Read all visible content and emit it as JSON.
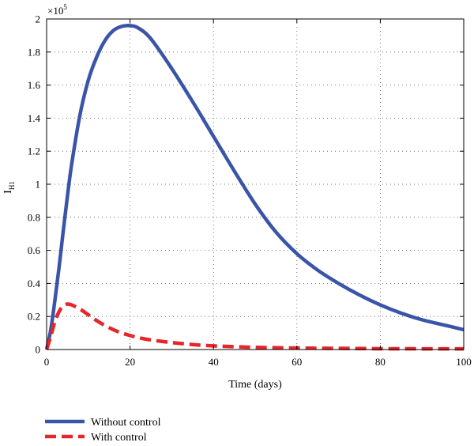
{
  "chart_data": {
    "type": "line",
    "xlabel": "Time (days)",
    "ylabel": "I",
    "ylabel_subscript": "H1",
    "y_exponent_base": "×10",
    "y_exponent_power": "5",
    "xlim": [
      0,
      100
    ],
    "ylim": [
      0,
      2
    ],
    "x_ticks": [
      "0",
      "20",
      "40",
      "60",
      "80",
      "100"
    ],
    "y_ticks": [
      "0",
      "0.2",
      "0.4",
      "0.6",
      "0.8",
      "1",
      "1.2",
      "1.4",
      "1.6",
      "1.8",
      "2"
    ],
    "grid": true,
    "legend_position": "bottom-left, below plot",
    "x": [
      0,
      1,
      2,
      3,
      4,
      5,
      6,
      8,
      10,
      12,
      14,
      16,
      18,
      20,
      22,
      25,
      30,
      35,
      40,
      45,
      50,
      55,
      60,
      65,
      70,
      75,
      80,
      85,
      90,
      95,
      100
    ],
    "series": [
      {
        "name": "Without control",
        "color": "#3a54a8",
        "style": "solid",
        "values": [
          0.0,
          0.12,
          0.3,
          0.5,
          0.72,
          0.93,
          1.12,
          1.42,
          1.63,
          1.77,
          1.87,
          1.93,
          1.955,
          1.96,
          1.945,
          1.88,
          1.7,
          1.5,
          1.29,
          1.08,
          0.88,
          0.71,
          0.58,
          0.48,
          0.4,
          0.33,
          0.27,
          0.22,
          0.18,
          0.15,
          0.12
        ]
      },
      {
        "name": "With control",
        "color": "#e5262b",
        "style": "dashed",
        "values": [
          0.0,
          0.08,
          0.17,
          0.23,
          0.265,
          0.275,
          0.27,
          0.245,
          0.21,
          0.175,
          0.145,
          0.12,
          0.1,
          0.085,
          0.072,
          0.058,
          0.042,
          0.03,
          0.022,
          0.017,
          0.013,
          0.011,
          0.009,
          0.008,
          0.007,
          0.006,
          0.005,
          0.005,
          0.004,
          0.004,
          0.004
        ]
      }
    ]
  }
}
